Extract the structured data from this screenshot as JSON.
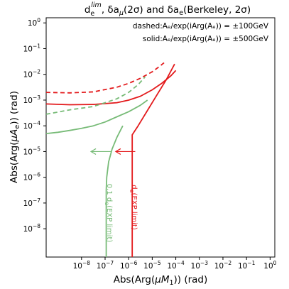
{
  "chart_data": {
    "type": "line",
    "title": "d_e^{lim}, δa_μ(2σ) and δa_e(Berkeley, 2σ)",
    "title_parts": {
      "d": "d",
      "sub": "e",
      "sup": "lim",
      "rest1": ", δa",
      "mu": "μ",
      "rest2": "(2σ) and δa",
      "e": "e",
      "rest3": "(Berkeley, 2σ)"
    },
    "xlabel": "Abs(Arg(μM₁)) (rad)",
    "ylabel": "Abs(Arg(μAₑ)) (rad)",
    "xlabel_parts": {
      "a": "Abs(Arg(",
      "mu": "μ",
      "M": "M",
      "sub": "1",
      "b": ")) (rad)"
    },
    "ylabel_parts": {
      "a": "Abs(Arg(",
      "mu": "μ",
      "A": "A",
      "sub": "e",
      "b": ")) (rad)"
    },
    "x_scale": "log",
    "y_scale": "log",
    "xlim_exp": [
      -9.5,
      0.2
    ],
    "ylim_exp": [
      -9.1,
      0.2
    ],
    "x_ticks_exp": [
      -8,
      -7,
      -6,
      -5,
      -4,
      -3,
      -2,
      -1,
      0
    ],
    "y_ticks_exp": [
      -8,
      -7,
      -6,
      -5,
      -4,
      -3,
      -2,
      -1,
      0
    ],
    "tick_base": "10",
    "legend_lines": [
      "dashed:Aₑ/exp(iArg(Aₑ)) = ±100GeV",
      "solid:Aₑ/exp(iArg(Aₑ)) = ±500GeV"
    ],
    "legend_placement": "top-right",
    "grid": false,
    "colors": {
      "red": "#e31a1c",
      "green": "#77bb77"
    },
    "series": [
      {
        "color": "red",
        "style": "dashed",
        "x_exp": [
          -9.5,
          -8.5,
          -7.5,
          -6.5,
          -6.0,
          -5.5,
          -5.0,
          -4.7,
          -4.5
        ],
        "y_exp": [
          -2.7,
          -2.72,
          -2.68,
          -2.5,
          -2.35,
          -2.15,
          -1.9,
          -1.7,
          -1.55
        ]
      },
      {
        "color": "red",
        "style": "solid",
        "x_exp": [
          -9.5,
          -8.5,
          -7.5,
          -6.5,
          -6.0,
          -5.5,
          -5.0,
          -4.6,
          -4.2,
          -4.0
        ],
        "y_exp": [
          -3.15,
          -3.18,
          -3.17,
          -3.1,
          -3.0,
          -2.85,
          -2.6,
          -2.35,
          -2.05,
          -1.85
        ]
      },
      {
        "color": "red",
        "style": "solid",
        "x_exp": [
          -5.85,
          -5.85,
          -5.85,
          -5.85,
          -5.6,
          -5.2,
          -4.8,
          -4.4,
          -4.05
        ],
        "y_exp": [
          -9.1,
          -6.0,
          -5.0,
          -4.35,
          -4.0,
          -3.4,
          -2.8,
          -2.2,
          -1.6
        ]
      },
      {
        "color": "green",
        "style": "dashed",
        "x_exp": [
          -9.5,
          -8.5,
          -7.5,
          -7.0,
          -6.5,
          -6.0,
          -5.6,
          -5.3
        ],
        "y_exp": [
          -3.55,
          -3.38,
          -3.25,
          -3.1,
          -2.95,
          -2.7,
          -2.4,
          -2.1
        ]
      },
      {
        "color": "green",
        "style": "solid",
        "x_exp": [
          -9.5,
          -9.0,
          -8.5,
          -8.0,
          -7.5,
          -7.0,
          -6.5,
          -6.0,
          -5.5,
          -5.2
        ],
        "y_exp": [
          -4.3,
          -4.25,
          -4.18,
          -4.1,
          -4.0,
          -3.85,
          -3.65,
          -3.45,
          -3.2,
          -3.0
        ]
      },
      {
        "color": "green",
        "style": "solid",
        "x_exp": [
          -6.95,
          -6.95,
          -6.95,
          -6.93,
          -6.85,
          -6.7,
          -6.5,
          -6.25
        ],
        "y_exp": [
          -9.1,
          -7.5,
          -6.5,
          -6.0,
          -5.4,
          -4.9,
          -4.45,
          -4.0
        ]
      }
    ],
    "arrows": [
      {
        "color": "red",
        "x_from_exp": -5.72,
        "x_to_exp": -6.55,
        "y_exp": -5.0
      },
      {
        "color": "green",
        "x_from_exp": -6.75,
        "x_to_exp": -7.6,
        "y_exp": -5.0
      }
    ],
    "annotations": [
      {
        "text": "d_e(EXP limit)",
        "color": "red"
      },
      {
        "text": "0.1 d_e(EXP limit)",
        "color": "green"
      }
    ],
    "annotation_parts": {
      "red": {
        "d": "d",
        "sub": "e",
        "rest": "(EXP limit)"
      },
      "green": {
        "pre": "0.1 d",
        "sub": "e",
        "rest": "(EXP limit)"
      }
    }
  }
}
